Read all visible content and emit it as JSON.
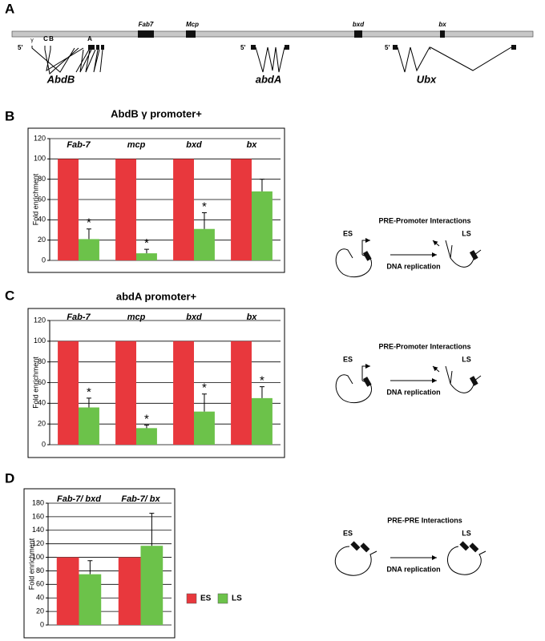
{
  "panels": [
    "A",
    "B",
    "C",
    "D"
  ],
  "gene_map": {
    "elements": [
      "Fab7",
      "Mcp",
      "bxd",
      "bx"
    ],
    "five_prime": [
      "5'",
      "5'",
      "5'"
    ],
    "promoters": [
      "γ",
      "C",
      "B",
      "A"
    ],
    "genes": [
      "AbdB",
      "abdA",
      "Ubx"
    ]
  },
  "schematics": [
    {
      "title": "PRE-Promoter Interactions",
      "early": "ES",
      "late": "LS",
      "arrow_label": "DNA replication"
    },
    {
      "title": "PRE-Promoter Interactions",
      "early": "ES",
      "late": "LS",
      "arrow_label": "DNA replication"
    },
    {
      "title": "PRE-PRE Interactions",
      "early": "ES",
      "late": "LS",
      "arrow_label": "DNA replication"
    }
  ],
  "chart_data": [
    {
      "type": "bar",
      "title": "AbdB γ promoter+",
      "ylabel": "Fold enrichment",
      "categories": [
        "Fab-7",
        "mcp",
        "bxd",
        "bx"
      ],
      "series": [
        {
          "color": "#e8383d",
          "values": [
            100,
            100,
            100,
            100
          ]
        },
        {
          "color": "#6cc24a",
          "values": [
            21,
            7,
            31,
            68
          ],
          "errors": [
            10,
            4,
            16,
            12
          ],
          "annotations": [
            "*",
            "*",
            "*",
            null
          ]
        }
      ],
      "ylim": [
        0,
        120
      ],
      "yticks": [
        0,
        20,
        40,
        60,
        80,
        100,
        120
      ],
      "grid": true
    },
    {
      "type": "bar",
      "title": "abdA promoter+",
      "ylabel": "Fold enrichment",
      "categories": [
        "Fab-7",
        "mcp",
        "bxd",
        "bx"
      ],
      "series": [
        {
          "color": "#e8383d",
          "values": [
            100,
            100,
            100,
            100
          ]
        },
        {
          "color": "#6cc24a",
          "values": [
            36,
            16,
            32,
            45
          ],
          "errors": [
            9,
            3,
            17,
            11
          ],
          "annotations": [
            "*",
            "*",
            "*",
            "*"
          ]
        }
      ],
      "ylim": [
        0,
        120
      ],
      "yticks": [
        0,
        20,
        40,
        60,
        80,
        100,
        120
      ],
      "grid": true
    },
    {
      "type": "bar",
      "ylabel": "Fold enrichment",
      "categories": [
        "Fab-7/ bxd",
        "Fab-7/ bx"
      ],
      "series": [
        {
          "name": "ES",
          "color": "#e8383d",
          "values": [
            100,
            100
          ]
        },
        {
          "name": "LS",
          "color": "#6cc24a",
          "values": [
            75,
            117
          ],
          "errors": [
            20,
            48
          ]
        }
      ],
      "ylim": [
        0,
        180
      ],
      "yticks": [
        0,
        20,
        40,
        60,
        80,
        100,
        120,
        140,
        160,
        180
      ],
      "grid": true,
      "legend": "outside-right"
    }
  ]
}
